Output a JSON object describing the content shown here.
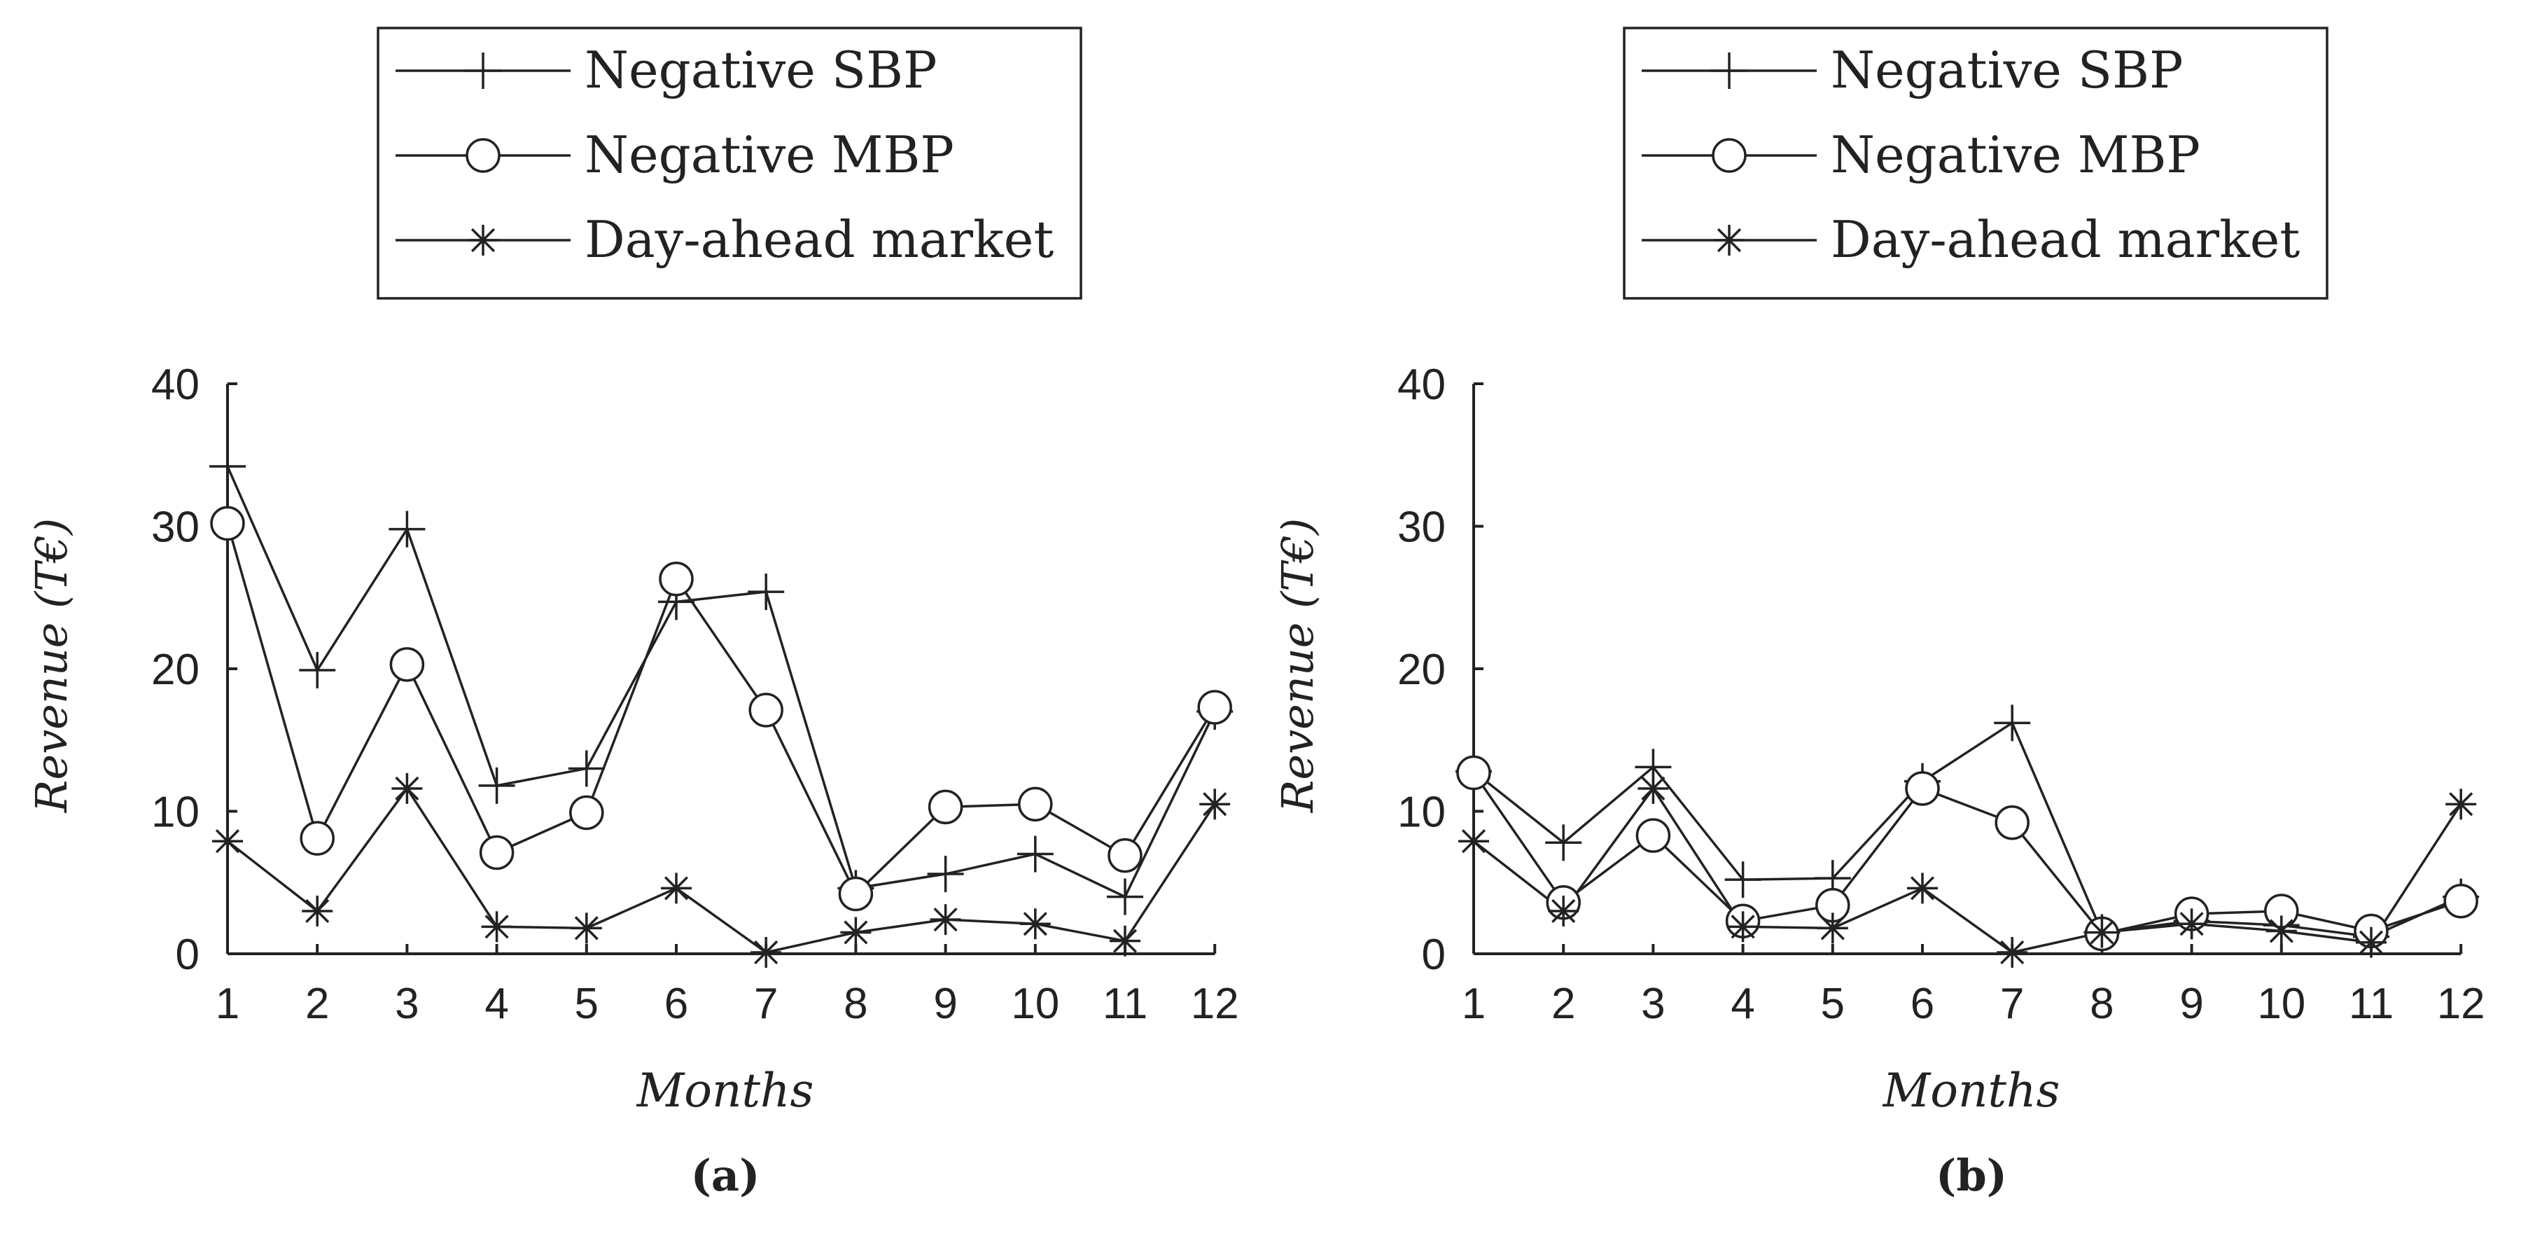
{
  "chart_data": [
    {
      "type": "line",
      "panel_label": "(a)",
      "xlabel": "Months",
      "ylabel": "Revenue (T€)",
      "ylim": [
        0,
        40
      ],
      "yticks": [
        0,
        10,
        20,
        30,
        40
      ],
      "x": [
        1,
        2,
        3,
        4,
        5,
        6,
        7,
        8,
        9,
        10,
        11,
        12
      ],
      "legend_position": "top-center",
      "series": [
        {
          "name": "Negative SBP",
          "marker": "plus",
          "values": [
            34.2,
            19.9,
            29.8,
            11.8,
            13.0,
            24.7,
            25.4,
            4.6,
            5.6,
            7.0,
            4.0,
            17.0
          ]
        },
        {
          "name": "Negative MBP",
          "marker": "circle",
          "values": [
            30.2,
            8.1,
            20.3,
            7.1,
            9.9,
            26.3,
            17.1,
            4.2,
            10.3,
            10.5,
            6.9,
            17.3
          ]
        },
        {
          "name": "Day-ahead market",
          "marker": "asterisk",
          "values": [
            7.9,
            3.0,
            11.6,
            1.9,
            1.8,
            4.6,
            0.1,
            1.5,
            2.4,
            2.1,
            0.9,
            10.5
          ]
        }
      ]
    },
    {
      "type": "line",
      "panel_label": "(b)",
      "xlabel": "Months",
      "ylabel": "Revenue (T€)",
      "ylim": [
        0,
        40
      ],
      "yticks": [
        0,
        10,
        20,
        30,
        40
      ],
      "x": [
        1,
        2,
        3,
        4,
        5,
        6,
        7,
        8,
        9,
        10,
        11,
        12
      ],
      "legend_position": "top-center",
      "series": [
        {
          "name": "Negative SBP",
          "marker": "plus",
          "values": [
            12.8,
            7.8,
            13.1,
            5.2,
            5.3,
            12.1,
            16.2,
            1.5,
            2.3,
            2.0,
            1.2,
            4.0
          ]
        },
        {
          "name": "Negative MBP",
          "marker": "circle",
          "values": [
            12.7,
            3.6,
            8.3,
            2.3,
            3.4,
            11.6,
            9.2,
            1.4,
            2.8,
            3.0,
            1.6,
            3.7
          ]
        },
        {
          "name": "Day-ahead market",
          "marker": "asterisk",
          "values": [
            7.9,
            3.0,
            11.6,
            1.9,
            1.8,
            4.6,
            0.1,
            1.5,
            2.1,
            1.6,
            0.8,
            10.5
          ]
        }
      ]
    }
  ]
}
